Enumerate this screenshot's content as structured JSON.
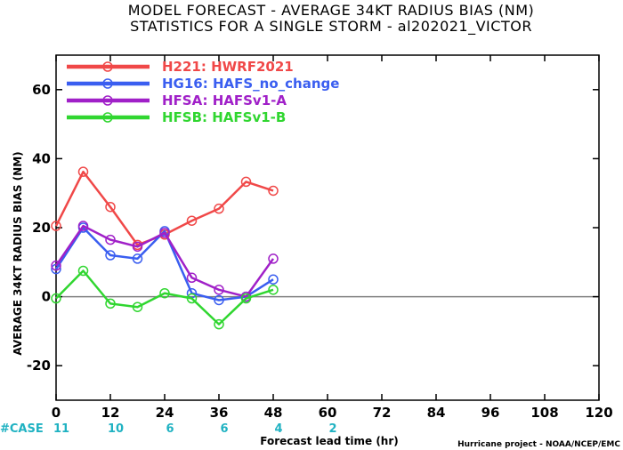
{
  "title_line1": "MODEL FORECAST - AVERAGE 34KT RADIUS BIAS (NM)",
  "title_line2": "STATISTICS FOR A SINGLE STORM - al202021_VICTOR",
  "credit": "Hurricane project - NOAA/NCEP/EMC",
  "case_label": "#CASE",
  "case_counts": [
    {
      "x": 0,
      "n": "11"
    },
    {
      "x": 12,
      "n": "10"
    },
    {
      "x": 24,
      "n": "6"
    },
    {
      "x": 36,
      "n": "6"
    },
    {
      "x": 48,
      "n": "4"
    },
    {
      "x": 60,
      "n": "2"
    }
  ],
  "colors": {
    "H221": "#f04848",
    "HG16": "#3a5ef0",
    "HFSA": "#a020c8",
    "HFSB": "#30d630",
    "case": "#20b2c2",
    "zero_line": "#808080"
  },
  "chart_data": {
    "type": "line",
    "title": "MODEL FORECAST - AVERAGE 34KT RADIUS BIAS (NM)",
    "subtitle": "STATISTICS FOR A SINGLE STORM - al202021_VICTOR",
    "xlabel": "Forecast lead time (hr)",
    "ylabel": "AVERAGE 34KT RADIUS BIAS (NM)",
    "xlim": [
      0,
      120
    ],
    "ylim": [
      -30,
      70
    ],
    "xticks": [
      0,
      12,
      24,
      36,
      48,
      60,
      72,
      84,
      96,
      108,
      120
    ],
    "yticks": [
      -20,
      0,
      20,
      40,
      60
    ],
    "legend_position": "top-left",
    "series": [
      {
        "key": "H221",
        "name": "H221: HWRF2021",
        "color": "#f04848",
        "x": [
          0,
          6,
          12,
          18,
          24,
          30,
          36,
          42,
          48
        ],
        "y": [
          20.5,
          36.2,
          26.0,
          15.0,
          18.0,
          22.0,
          25.5,
          33.3,
          30.7
        ]
      },
      {
        "key": "HG16",
        "name": "HG16: HAFS_no_change",
        "color": "#3a5ef0",
        "x": [
          0,
          6,
          12,
          18,
          24,
          30,
          36,
          42,
          48
        ],
        "y": [
          8.0,
          20.0,
          12.0,
          11.0,
          19.0,
          1.0,
          -1.0,
          0.0,
          5.0
        ]
      },
      {
        "key": "HFSA",
        "name": "HFSA: HAFSv1-A",
        "color": "#a020c8",
        "x": [
          0,
          6,
          12,
          18,
          24,
          30,
          36,
          42,
          48
        ],
        "y": [
          9.0,
          20.5,
          16.5,
          14.5,
          18.5,
          5.5,
          2.0,
          0.0,
          11.0
        ]
      },
      {
        "key": "HFSB",
        "name": "HFSB: HAFSv1-B",
        "color": "#30d630",
        "x": [
          0,
          6,
          12,
          18,
          24,
          30,
          36,
          42,
          48
        ],
        "y": [
          -0.5,
          7.5,
          -2.0,
          -3.0,
          1.0,
          -0.5,
          -8.0,
          -0.5,
          2.0
        ]
      }
    ]
  }
}
